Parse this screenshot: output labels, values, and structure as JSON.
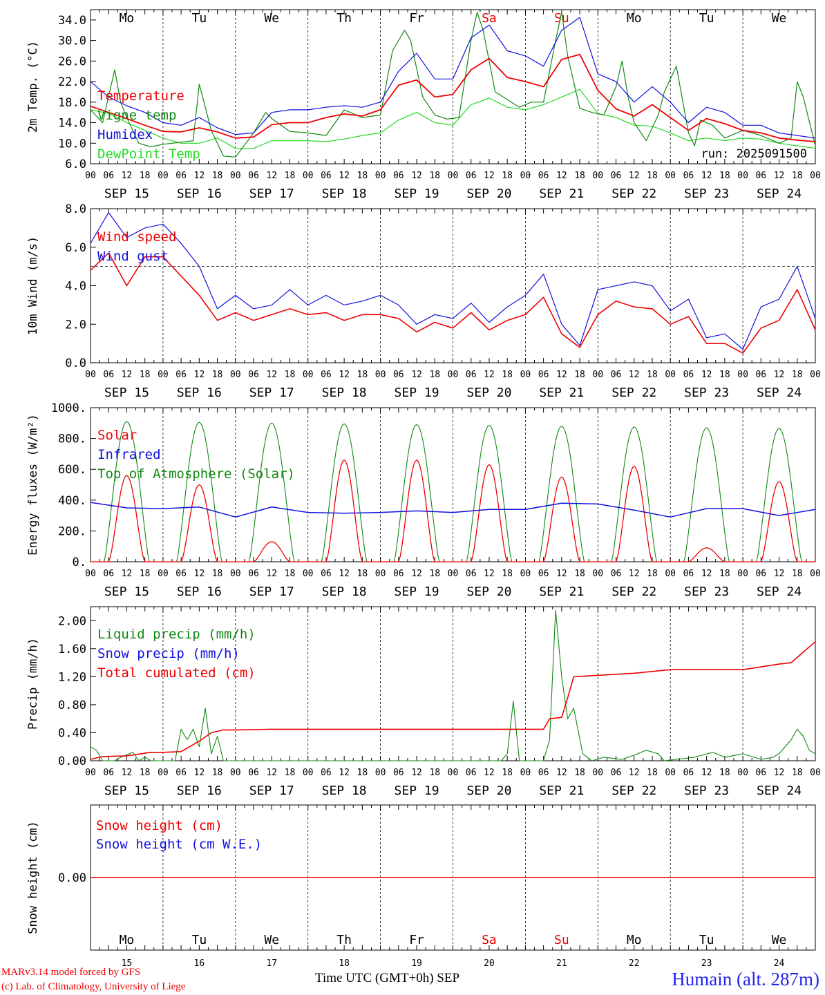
{
  "colors": {
    "red": "#ee0000",
    "green": "#118811",
    "blue": "#1111dd",
    "lightgreen": "#22dd22",
    "black": "#000000"
  },
  "footer": {
    "credit_line1": "MARv3.14 model forced by GFS",
    "credit_line2": "(c) Lab. of Climatology, University of Liege",
    "xaxis_title": "Time UTC (GMT+0h) SEP",
    "station": "Humain (alt. 287m)"
  },
  "chart_data": [
    {
      "type": "line",
      "title": "2m Temperature",
      "ylabel": "2m Temp. (°C)",
      "ylim": [
        6,
        36
      ],
      "yticks": [
        "6.0",
        "10.0",
        "14.0",
        "18.0",
        "22.0",
        "26.0",
        "30.0",
        "34.0"
      ],
      "ytick_values": [
        6,
        10,
        14,
        18,
        22,
        26,
        30,
        34
      ],
      "run_label": "run: 2025091500",
      "day_names": [
        "Mo",
        "Tu",
        "We",
        "Th",
        "Fr",
        "Sa",
        "Su",
        "Mo",
        "Tu",
        "We"
      ],
      "weekend_days": [
        5,
        6
      ],
      "date_labels": [
        "SEP 15",
        "SEP 16",
        "SEP 17",
        "SEP 18",
        "SEP 19",
        "SEP 20",
        "SEP 21",
        "SEP 22",
        "SEP 23",
        "SEP 24"
      ],
      "hour_labels": [
        "00",
        "06",
        "12",
        "18"
      ],
      "x_unit": "hours since Sep 15 00 UTC",
      "xlim": [
        0,
        240
      ],
      "legend": [
        "Temperature",
        "Vigne temp",
        "Humidex",
        "DewPoint Temp"
      ],
      "series": [
        {
          "name": "Temperature",
          "color": "red",
          "x": [
            0,
            6,
            12,
            18,
            24,
            30,
            36,
            42,
            48,
            54,
            60,
            66,
            72,
            78,
            84,
            90,
            96,
            102,
            108,
            114,
            120,
            126,
            132,
            138,
            144,
            150,
            156,
            162,
            168,
            174,
            180,
            186,
            192,
            198,
            204,
            210,
            216,
            222,
            228,
            234,
            240
          ],
          "y": [
            17.2,
            16.0,
            14.8,
            13.5,
            12.3,
            12.2,
            13.0,
            12.2,
            11.0,
            11.2,
            13.6,
            14.0,
            14.0,
            15.0,
            15.7,
            15.3,
            16.5,
            21.3,
            22.3,
            19.0,
            19.5,
            24.3,
            26.5,
            22.8,
            22.0,
            21.0,
            26.3,
            27.3,
            20.3,
            16.7,
            15.3,
            17.5,
            15.0,
            12.5,
            14.8,
            13.8,
            12.5,
            12.0,
            11.0,
            10.6,
            10.3
          ]
        },
        {
          "name": "Vigne temp",
          "color": "green",
          "x": [
            0,
            4,
            8,
            10,
            12,
            16,
            20,
            24,
            30,
            34,
            36,
            40,
            44,
            48,
            54,
            58,
            60,
            66,
            72,
            78,
            84,
            90,
            96,
            100,
            104,
            106,
            110,
            114,
            118,
            122,
            126,
            128,
            130,
            134,
            138,
            142,
            146,
            150,
            154,
            156,
            158,
            162,
            166,
            170,
            174,
            176,
            178,
            180,
            184,
            188,
            190,
            194,
            198,
            200,
            202,
            206,
            210,
            216,
            222,
            228,
            232,
            234,
            236,
            240
          ],
          "y": [
            16.5,
            14.0,
            24.3,
            18.0,
            15.0,
            10.0,
            9.3,
            9.8,
            10.2,
            10.5,
            21.5,
            12.5,
            7.5,
            7.3,
            12.0,
            16.0,
            14.8,
            12.3,
            12.0,
            11.5,
            16.5,
            15.0,
            15.5,
            28.0,
            32.0,
            30.0,
            19.0,
            15.5,
            14.7,
            15.0,
            30.0,
            35.5,
            32.0,
            20.0,
            18.5,
            17.0,
            18.0,
            18.0,
            30.0,
            35.5,
            27.0,
            16.8,
            16.0,
            15.5,
            21.0,
            26.0,
            19.0,
            14.0,
            10.5,
            15.5,
            20.0,
            25.0,
            12.0,
            9.5,
            14.5,
            13.5,
            11.0,
            12.5,
            11.5,
            10.0,
            11.0,
            22.0,
            19.0,
            9.5
          ]
        },
        {
          "name": "Humidex",
          "color": "blue",
          "x": [
            0,
            6,
            12,
            18,
            24,
            30,
            36,
            42,
            48,
            54,
            60,
            66,
            72,
            78,
            84,
            90,
            96,
            102,
            108,
            114,
            120,
            126,
            132,
            138,
            144,
            150,
            156,
            162,
            168,
            174,
            180,
            186,
            192,
            198,
            204,
            210,
            216,
            222,
            228,
            234,
            240
          ],
          "y": [
            22.0,
            19.0,
            17.3,
            16.0,
            14.0,
            13.5,
            15.0,
            13.0,
            11.7,
            12.0,
            16.0,
            16.5,
            16.5,
            17.0,
            17.3,
            17.0,
            18.0,
            24.0,
            27.5,
            22.5,
            22.5,
            30.5,
            33.0,
            28.0,
            27.0,
            25.0,
            32.0,
            34.5,
            23.5,
            22.0,
            18.0,
            21.0,
            18.0,
            14.0,
            17.0,
            16.0,
            13.5,
            13.5,
            12.0,
            11.5,
            11.0
          ]
        },
        {
          "name": "DewPoint Temp",
          "color": "lightgreen",
          "x": [
            0,
            6,
            12,
            18,
            24,
            30,
            36,
            42,
            48,
            54,
            60,
            66,
            72,
            78,
            84,
            90,
            96,
            102,
            108,
            114,
            120,
            126,
            132,
            138,
            144,
            150,
            156,
            162,
            168,
            174,
            180,
            186,
            192,
            198,
            204,
            210,
            216,
            222,
            228,
            234,
            240
          ],
          "y": [
            16.5,
            15.8,
            14.0,
            12.5,
            11.0,
            10.0,
            10.0,
            11.0,
            9.0,
            9.0,
            10.5,
            10.5,
            10.5,
            10.3,
            10.8,
            11.5,
            12.0,
            14.5,
            16.0,
            14.0,
            13.5,
            17.5,
            18.8,
            17.0,
            16.5,
            17.5,
            19.0,
            20.5,
            15.8,
            15.0,
            13.5,
            13.3,
            12.0,
            10.5,
            11.0,
            10.5,
            11.0,
            10.8,
            10.0,
            9.5,
            9.0
          ]
        }
      ]
    },
    {
      "type": "line",
      "title": "10m Wind",
      "ylabel": "10m Wind (m/s)",
      "ylim": [
        0,
        8
      ],
      "yticks": [
        "0.0",
        "2.0",
        "4.0",
        "6.0",
        "8.0"
      ],
      "ytick_values": [
        0,
        2,
        4,
        6,
        8
      ],
      "reference_line": 5,
      "date_labels": [
        "SEP 15",
        "SEP 16",
        "SEP 17",
        "SEP 18",
        "SEP 19",
        "SEP 20",
        "SEP 21",
        "SEP 22",
        "SEP 23",
        "SEP 24"
      ],
      "hour_labels": [
        "00",
        "06",
        "12",
        "18"
      ],
      "xlim": [
        0,
        240
      ],
      "legend": [
        "Wind speed",
        "Wind gust"
      ],
      "series": [
        {
          "name": "Wind speed",
          "color": "red",
          "x": [
            0,
            6,
            12,
            18,
            24,
            30,
            36,
            42,
            48,
            54,
            60,
            66,
            72,
            78,
            84,
            90,
            96,
            102,
            108,
            114,
            120,
            126,
            132,
            138,
            144,
            150,
            156,
            162,
            168,
            174,
            180,
            186,
            192,
            198,
            204,
            210,
            216,
            222,
            228,
            234,
            240
          ],
          "y": [
            4.8,
            5.7,
            4.0,
            5.5,
            5.5,
            4.5,
            3.5,
            2.2,
            2.6,
            2.2,
            2.5,
            2.8,
            2.5,
            2.6,
            2.2,
            2.5,
            2.5,
            2.3,
            1.6,
            2.1,
            1.8,
            2.6,
            1.7,
            2.2,
            2.5,
            3.4,
            1.5,
            0.8,
            2.5,
            3.2,
            2.9,
            2.8,
            2.0,
            2.4,
            1.0,
            1.0,
            0.5,
            1.8,
            2.2,
            3.8,
            1.7
          ]
        },
        {
          "name": "Wind gust",
          "color": "blue",
          "x": [
            0,
            6,
            12,
            18,
            24,
            30,
            36,
            42,
            48,
            54,
            60,
            66,
            72,
            78,
            84,
            90,
            96,
            102,
            108,
            114,
            120,
            126,
            132,
            138,
            144,
            150,
            156,
            162,
            168,
            174,
            180,
            186,
            192,
            198,
            204,
            210,
            216,
            222,
            228,
            234,
            240
          ],
          "y": [
            6.2,
            7.8,
            6.5,
            7.0,
            7.2,
            6.2,
            5.0,
            2.8,
            3.5,
            2.8,
            3.0,
            3.8,
            3.0,
            3.5,
            3.0,
            3.2,
            3.5,
            3.0,
            2.0,
            2.5,
            2.3,
            3.1,
            2.1,
            2.9,
            3.5,
            4.6,
            2.0,
            0.9,
            3.8,
            4.0,
            4.2,
            4.0,
            2.7,
            3.3,
            1.3,
            1.5,
            0.7,
            2.9,
            3.3,
            5.0,
            2.3
          ]
        }
      ]
    },
    {
      "type": "line",
      "title": "Energy fluxes",
      "ylabel": "Energy fluxes (W/m²)",
      "ylim": [
        0,
        1000
      ],
      "yticks": [
        "0.",
        "200.",
        "400.",
        "600.",
        "800.",
        "1000."
      ],
      "ytick_values": [
        0,
        200,
        400,
        600,
        800,
        1000
      ],
      "date_labels": [
        "SEP 15",
        "SEP 16",
        "SEP 17",
        "SEP 18",
        "SEP 19",
        "SEP 20",
        "SEP 21",
        "SEP 22",
        "SEP 23",
        "SEP 24"
      ],
      "hour_labels": [
        "00",
        "06",
        "12",
        "18"
      ],
      "xlim": [
        0,
        240
      ],
      "legend": [
        "Solar",
        "Infrared",
        "Top of Atmosphere (Solar)"
      ],
      "toa_peaks": [
        910,
        905,
        900,
        895,
        890,
        885,
        880,
        875,
        870,
        865
      ],
      "solar_peaks": [
        560,
        500,
        130,
        660,
        660,
        630,
        550,
        620,
        90,
        520
      ],
      "series": [
        {
          "name": "Infrared",
          "color": "blue",
          "x": [
            0,
            12,
            24,
            36,
            48,
            60,
            72,
            84,
            96,
            108,
            120,
            132,
            144,
            156,
            168,
            180,
            192,
            204,
            216,
            228,
            240
          ],
          "y": [
            385,
            350,
            345,
            355,
            290,
            355,
            320,
            315,
            320,
            330,
            320,
            340,
            340,
            380,
            375,
            335,
            290,
            345,
            345,
            300,
            340
          ]
        }
      ]
    },
    {
      "type": "line",
      "title": "Precip",
      "ylabel": "Precip (mm/h)",
      "ylim": [
        0,
        2.2
      ],
      "yticks": [
        "0.00",
        "0.40",
        "0.80",
        "1.20",
        "1.60",
        "2.00"
      ],
      "ytick_values": [
        0,
        0.4,
        0.8,
        1.2,
        1.6,
        2.0
      ],
      "date_labels": [
        "SEP 15",
        "SEP 16",
        "SEP 17",
        "SEP 18",
        "SEP 19",
        "SEP 20",
        "SEP 21",
        "SEP 22",
        "SEP 23",
        "SEP 24"
      ],
      "hour_labels": [
        "00",
        "06",
        "12",
        "18"
      ],
      "xlim": [
        0,
        240
      ],
      "legend": [
        "Liquid precip (mm/h)",
        "Snow precip (mm/h)",
        "Total cumulated (cm)"
      ],
      "series": [
        {
          "name": "Liquid precip (mm/h)",
          "color": "green",
          "x": [
            0,
            2,
            4,
            6,
            8,
            10,
            14,
            16,
            18,
            20,
            24,
            28,
            30,
            32,
            34,
            36,
            38,
            40,
            42,
            44,
            136,
            138,
            140,
            142,
            150,
            152,
            154,
            156,
            158,
            160,
            163,
            166,
            170,
            176,
            180,
            184,
            188,
            190,
            194,
            200,
            206,
            210,
            216,
            222,
            226,
            228,
            232,
            234,
            236,
            238,
            240
          ],
          "y": [
            0.2,
            0.15,
            0,
            0,
            0,
            0.05,
            0.12,
            0,
            0.05,
            0,
            0,
            0,
            0.45,
            0.3,
            0.45,
            0.2,
            0.75,
            0.1,
            0.35,
            0,
            0,
            0.1,
            0.85,
            0,
            0,
            0.3,
            2.15,
            1.2,
            0.6,
            0.75,
            0.1,
            0,
            0.05,
            0.02,
            0.08,
            0.15,
            0.1,
            0,
            0.02,
            0.05,
            0.12,
            0.05,
            0.1,
            0.02,
            0.05,
            0.1,
            0.3,
            0.45,
            0.35,
            0.15,
            0.1
          ]
        },
        {
          "name": "Total cumulated (cm)",
          "color": "red",
          "x": [
            0,
            4,
            12,
            20,
            24,
            30,
            36,
            40,
            44,
            48,
            60,
            72,
            96,
            120,
            144,
            150,
            152,
            154,
            156,
            158,
            160,
            180,
            192,
            216,
            228,
            232,
            236,
            240
          ],
          "y": [
            0.02,
            0.06,
            0.07,
            0.12,
            0.12,
            0.13,
            0.28,
            0.4,
            0.44,
            0.44,
            0.45,
            0.45,
            0.45,
            0.45,
            0.45,
            0.45,
            0.6,
            0.61,
            0.62,
            0.9,
            1.2,
            1.25,
            1.3,
            1.3,
            1.38,
            1.4,
            1.55,
            1.7
          ]
        }
      ]
    },
    {
      "type": "line",
      "title": "Snow height",
      "ylabel": "Snow height (cm)",
      "ytick_label": "0.00",
      "legend": [
        "Snow height (cm)",
        "Snow height (cm W.E.)"
      ],
      "day_names": [
        "Mo",
        "Tu",
        "We",
        "Th",
        "Fr",
        "Sa",
        "Su",
        "Mo",
        "Tu",
        "We"
      ],
      "weekend_days": [
        5,
        6
      ],
      "day_numbers": [
        "15",
        "16",
        "17",
        "18",
        "19",
        "20",
        "21",
        "22",
        "23",
        "24"
      ],
      "xlim": [
        0,
        240
      ],
      "series": [
        {
          "name": "Snow height (cm)",
          "color": "red",
          "x": [
            0,
            240
          ],
          "y": [
            0,
            0
          ]
        }
      ]
    }
  ]
}
